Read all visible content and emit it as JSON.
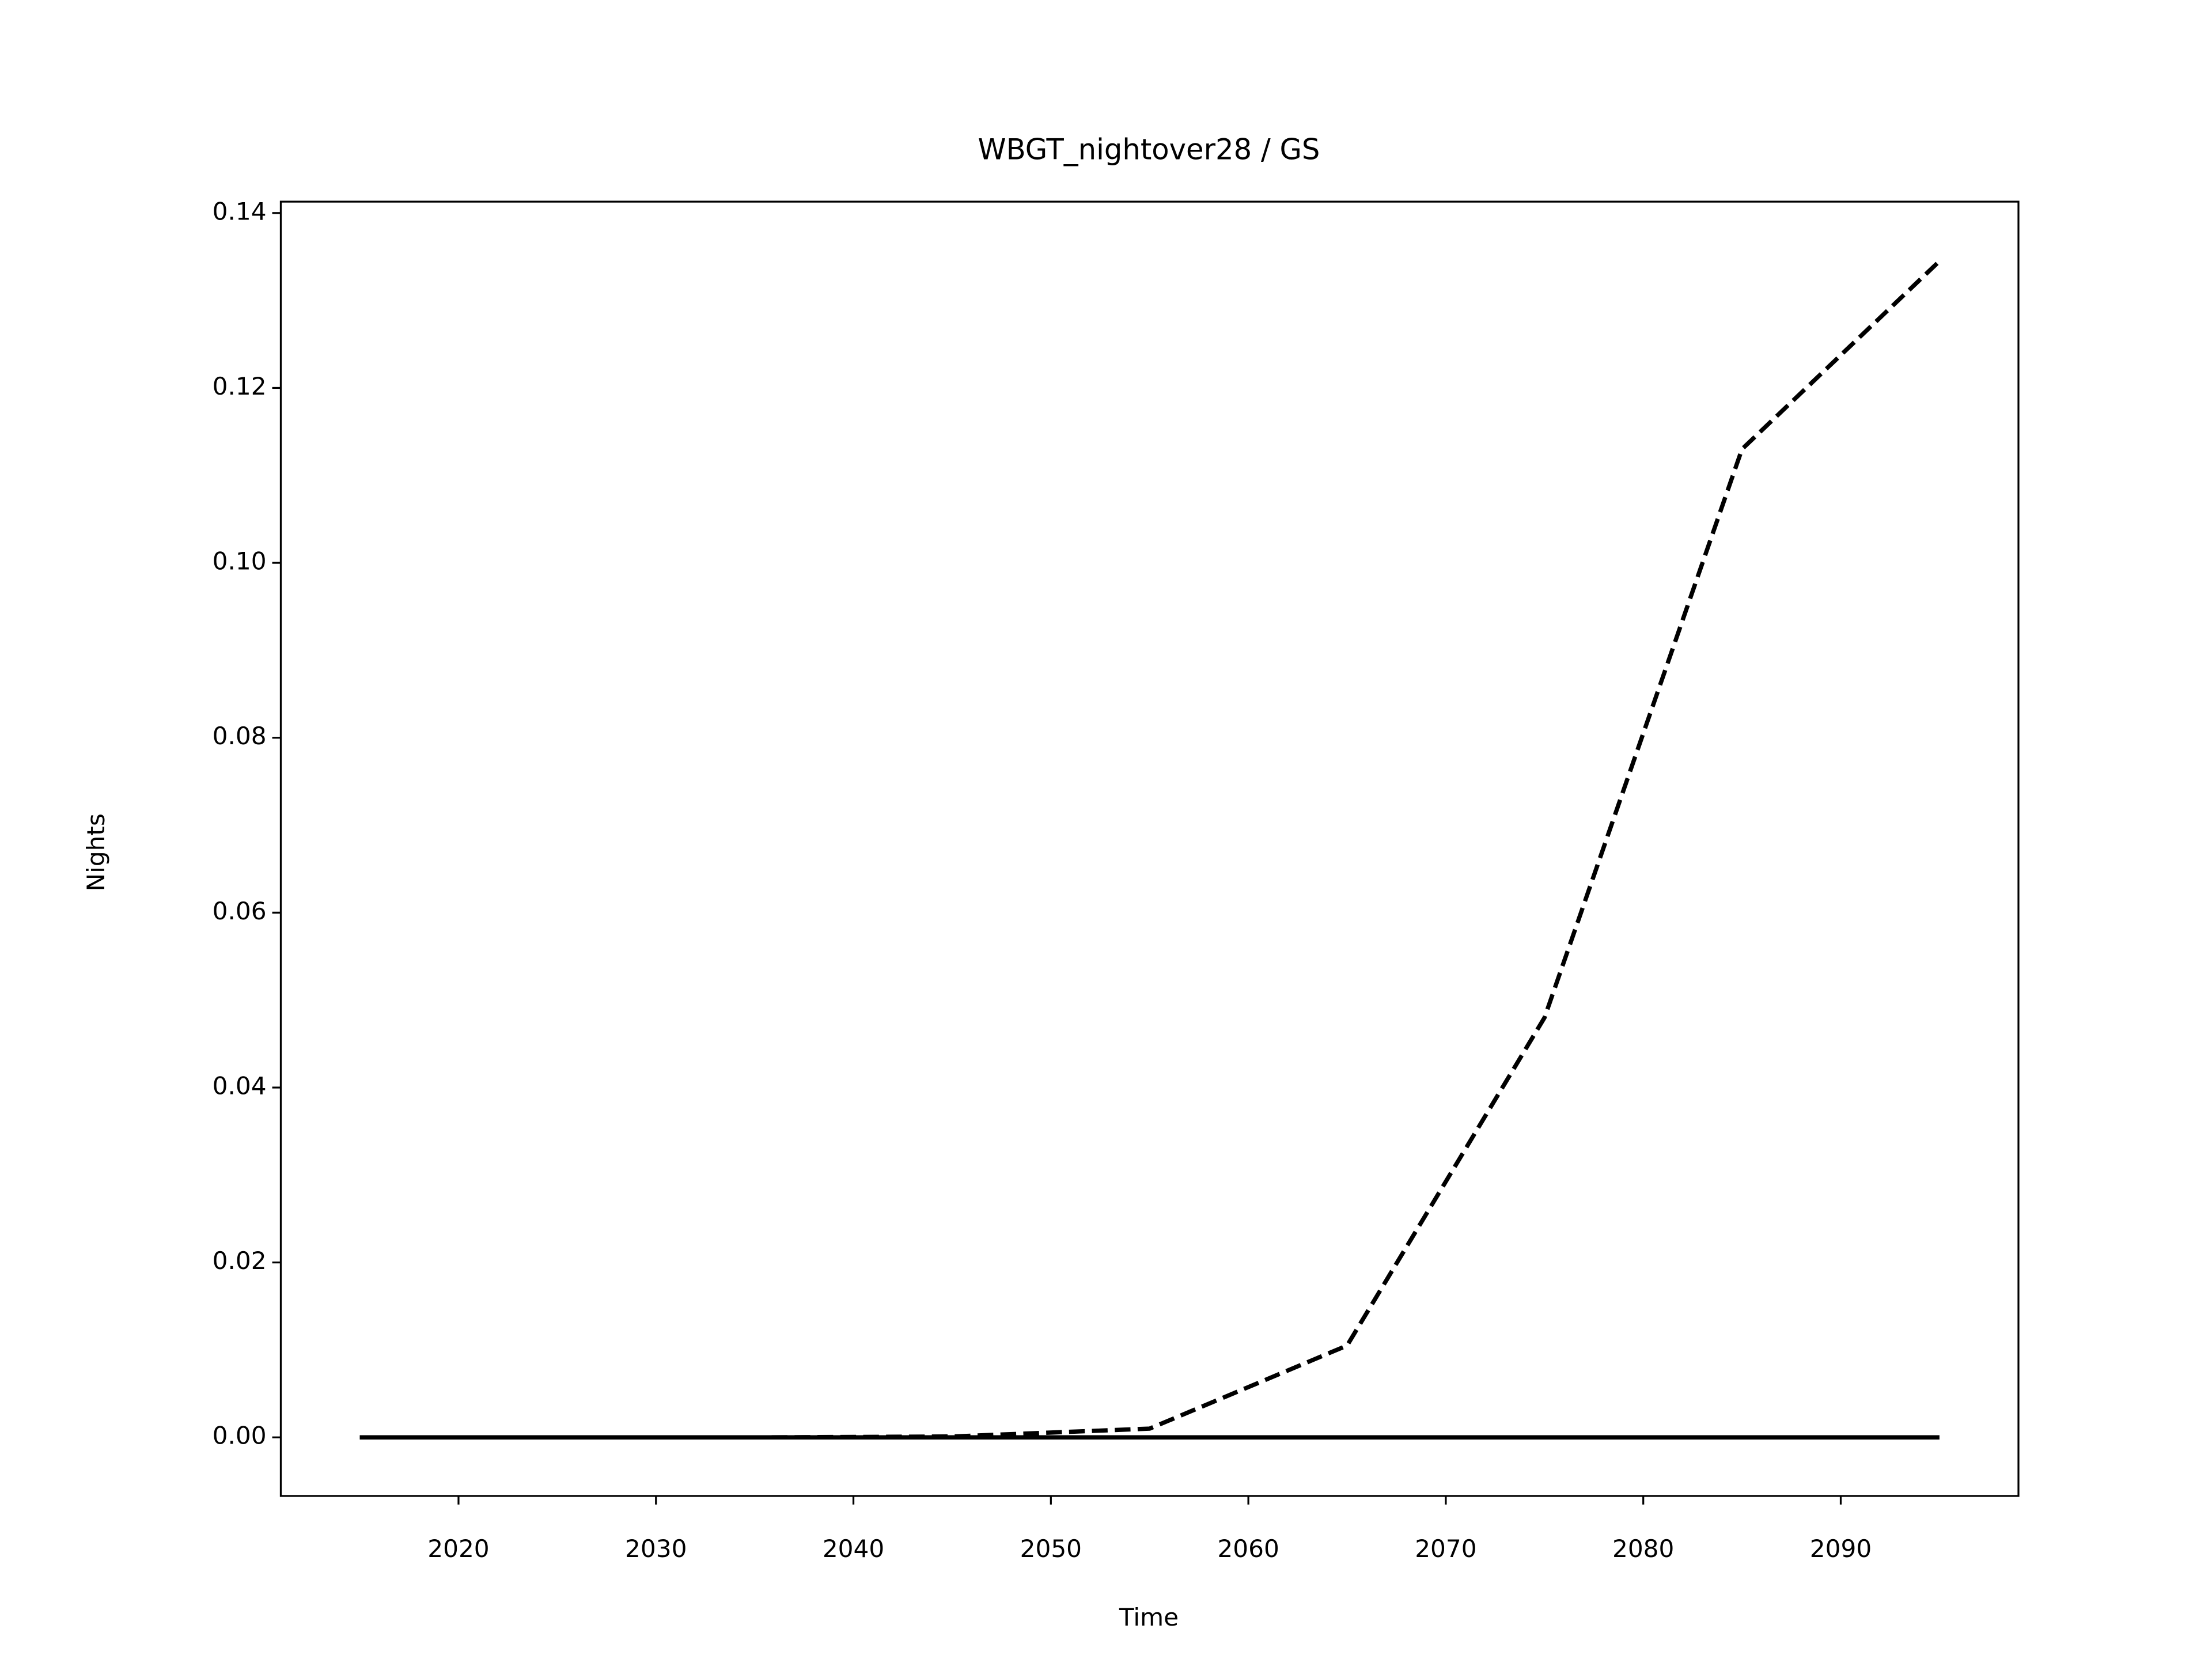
{
  "chart_data": {
    "type": "line",
    "title": "WBGT_nightover28 / GS",
    "xlabel": "Time",
    "ylabel": "Nights",
    "x": [
      2015,
      2025,
      2035,
      2045,
      2055,
      2065,
      2075,
      2085,
      2095
    ],
    "series": [
      {
        "color": "#000000",
        "dash": "dashed",
        "values": [
          0,
          0,
          0,
          0.0001,
          0.001,
          0.0105,
          0.048,
          0.113,
          0.1345
        ]
      },
      {
        "color": "#000000",
        "dash": "solid",
        "values": [
          0,
          0,
          0,
          0,
          0,
          0,
          0,
          0,
          0
        ]
      }
    ],
    "xlim": [
      2011,
      2099
    ],
    "xticks": [
      2020,
      2030,
      2040,
      2050,
      2060,
      2070,
      2080,
      2090
    ],
    "ylim": [
      -0.0067,
      0.1413
    ],
    "yticks": [
      {
        "value": 0,
        "label": "0.00"
      },
      {
        "value": 0.02,
        "label": "0.02"
      },
      {
        "value": 0.04,
        "label": "0.04"
      },
      {
        "value": 0.06,
        "label": "0.06"
      },
      {
        "value": 0.08,
        "label": "0.08"
      },
      {
        "value": 0.1,
        "label": "0.10"
      },
      {
        "value": 0.12,
        "label": "0.12"
      },
      {
        "value": 0.14,
        "label": "0.14"
      }
    ],
    "grid": false
  }
}
